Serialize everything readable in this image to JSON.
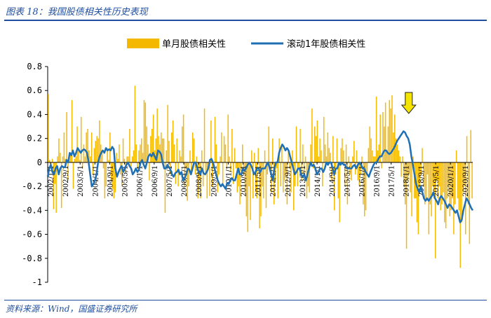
{
  "header": {
    "caption": "图表 18：我国股债相关性历史表现"
  },
  "footer": {
    "source": "资料来源：Wind，国盛证券研究所"
  },
  "colors": {
    "bar": "#f5b800",
    "line": "#1f6fb5",
    "accent": "#1f4e9e",
    "arrow": "#f5e400"
  },
  "chart_data": {
    "type": "bar+line",
    "legend": [
      "单月股债相关性",
      "滚动1年股债相关性"
    ],
    "legend_position": "top",
    "ylim": [
      -1,
      0.8
    ],
    "yticks": [
      "0.8",
      "0.6",
      "0.4",
      "0.2",
      "0",
      "-0.2",
      "-0.4",
      "-0.6",
      "-0.8",
      "-1"
    ],
    "ytick_values": [
      0.8,
      0.6,
      0.4,
      0.2,
      0,
      -0.2,
      -0.4,
      -0.6,
      -0.8,
      -1
    ],
    "xlabels": [
      "2002/1/1",
      "2002/9/1",
      "2003/5/1",
      "2004/1/1",
      "2004/9/1",
      "2005/5/1",
      "2006/1/1",
      "2006/9/1",
      "2007/5/1",
      "2008/1/1",
      "2008/9/1",
      "2009/5/1",
      "2010/1/1",
      "2010/9/1",
      "2011/5/1",
      "2012/1/1",
      "2012/9/1",
      "2013/5/1",
      "2014/1/1",
      "2014/9/1",
      "2015/5/1",
      "2016/1/1",
      "2016/9/1",
      "2017/5/1",
      "2018/1/1",
      "2018/9/1",
      "2019/5/1",
      "2020/1/1",
      "2020/9/1"
    ],
    "annotation": {
      "type": "arrow",
      "position": "2018/1/1"
    },
    "series": [
      {
        "name": "单月股债相关性",
        "type": "bar",
        "values": [
          0.57,
          0.02,
          -0.05,
          0.03,
          -0.39,
          -0.18,
          -0.42,
          0.05,
          0.2,
          0.08,
          -0.38,
          0.05,
          0.25,
          0.03,
          0.42,
          -0.15,
          0.05,
          0.08,
          0.52,
          -0.22,
          0.03,
          0.05,
          0.3,
          0.1,
          0.02,
          0.38,
          -0.05,
          0.15,
          0.05,
          0.25,
          0.28,
          0.1,
          0.05,
          0.25,
          -0.1,
          0.12,
          0.18,
          0.22,
          0.2,
          0.35,
          0.15,
          0.1,
          -0.05,
          -0.3,
          -0.2,
          0.12,
          0.02,
          0.25,
          -0.15,
          -0.22,
          -0.3,
          -0.25,
          0.08,
          0.03,
          0.15,
          -0.1,
          -0.2,
          0.2,
          0.03,
          -0.08,
          0.05,
          0.05,
          0.28,
          -0.05,
          0.05,
          0.1,
          0.64,
          0.15,
          -0.05,
          0.1,
          0.15,
          0.2,
          0.08,
          0.52,
          0.5,
          0.3,
          0.15,
          -0.15,
          0.22,
          0.28,
          0.4,
          0.1,
          0.2,
          0.45,
          0.22,
          0.15,
          0.25,
          0.2,
          0.2,
          -0.42,
          0.1,
          0.48,
          0.18,
          -0.1,
          0.25,
          0.35,
          0.15,
          -0.18,
          0.2,
          -0.2,
          0.1,
          0.05,
          0.3,
          0.4,
          -0.2,
          -0.05,
          -0.32,
          -0.2,
          0.1,
          -0.1,
          0.25,
          0.2,
          -0.1,
          0.05,
          -0.3,
          -0.15,
          -0.3,
          0.1,
          -0.2,
          0.45,
          -0.1,
          -0.3,
          -0.05,
          -0.28,
          0.35,
          -0.2,
          -0.05,
          0.38,
          0.15,
          -0.25,
          -0.1,
          0.05,
          0.25,
          -0.2,
          0.22,
          0.15,
          -0.05,
          0.4,
          0.05,
          -0.08,
          0.28,
          -0.18,
          0.12,
          -0.05,
          -0.25,
          -0.2,
          -0.35,
          -0.05,
          0.15,
          -0.1,
          -0.25,
          -0.45,
          -0.58,
          -0.2,
          -0.48,
          0.1,
          -0.3,
          0.08,
          -0.25,
          -0.3,
          0.12,
          -0.55,
          -0.45,
          -0.2,
          -0.3,
          0.1,
          -0.38,
          -0.1,
          0.3,
          -0.05,
          -0.25,
          0.2,
          -0.35,
          -0.15,
          -0.05,
          -0.3,
          0.2,
          -0.2,
          0.15,
          -0.25,
          -0.15,
          -0.1,
          -0.35,
          0.1,
          -0.05,
          -0.25,
          0.1,
          -0.4,
          -0.2,
          0.3,
          -0.2,
          -0.05,
          0.28,
          -0.15,
          0.15,
          -0.1,
          0.05,
          -0.3,
          -0.2,
          -0.25,
          0.15,
          0.45,
          -0.05,
          0.3,
          0.22,
          0.35,
          0.05,
          0.2,
          0.1,
          -0.2,
          0.38,
          0.15,
          0.05,
          0.25,
          0.12,
          0.08,
          -0.15,
          0.22,
          -0.4,
          -0.1,
          0.2,
          -0.3,
          -0.5,
          0.12,
          0.2,
          0.1,
          -0.2,
          0.15,
          -0.35,
          0.05,
          -0.1,
          -0.15,
          0.05,
          0.18,
          -0.1,
          0.1,
          -0.15,
          -0.2,
          -0.1,
          0.05,
          -0.35,
          -0.45,
          -0.4,
          -0.1,
          0.12,
          0.3,
          0.2,
          0.1,
          0.05,
          0.05,
          0.55,
          0.1,
          0.15,
          0.4,
          -0.05,
          0.42,
          0.3,
          0.5,
          0.1,
          0.3,
          0.52,
          0.45,
          0.56,
          0.25,
          0.4,
          0.2,
          0.15,
          0.1,
          0.05,
          -0.12,
          0.05,
          -0.2,
          -0.35,
          -0.72,
          -0.15,
          -0.1,
          -0.25,
          -0.45,
          0.05,
          -0.3,
          -0.3,
          -0.5,
          -0.6,
          -0.2,
          -0.1,
          0.12,
          -0.2,
          -0.35,
          -0.3,
          -0.1,
          -0.6,
          -0.35,
          -0.45,
          -0.2,
          -0.3,
          -0.8,
          -0.15,
          -0.3,
          -0.2,
          -0.4,
          -0.35,
          -0.25,
          -0.5,
          -0.55,
          -0.3,
          -0.2,
          -0.45,
          -0.4,
          -0.3,
          -0.6,
          -0.35,
          0.1,
          -0.3,
          -0.4,
          -0.88,
          -0.5,
          -0.25,
          -0.2,
          -0.6,
          0.22,
          -0.35,
          -0.68,
          0.27,
          -0.3
        ]
      },
      {
        "name": "滚动1年股债相关性",
        "type": "line",
        "values": [
          -0.12,
          -0.05,
          -0.02,
          -0.08,
          -0.1,
          -0.05,
          -0.03,
          -0.1,
          -0.05,
          -0.03,
          -0.04,
          -0.04,
          0.02,
          0.0,
          0.08,
          0.06,
          0.1,
          0.05,
          0.08,
          0.12,
          0.1,
          0.08,
          0.1,
          0.11,
          0.1,
          0.08,
          0.0,
          -0.1,
          -0.2,
          -0.18,
          -0.15,
          -0.1,
          0.0,
          0.05,
          0.08,
          0.1,
          0.08,
          0.12,
          0.1,
          0.11,
          0.1,
          0.13,
          0.11,
          -0.05,
          -0.12,
          -0.08,
          -0.05,
          -0.03,
          -0.08,
          -0.05,
          -0.02,
          0.0,
          -0.03,
          -0.05,
          -0.1,
          -0.08,
          -0.05,
          -0.08,
          -0.06,
          0.0,
          0.02,
          -0.02,
          -0.05,
          0.0,
          0.05,
          0.07,
          0.05,
          0.08,
          0.05,
          0.02,
          0.1,
          0.09,
          0.07,
          0.0,
          -0.05,
          -0.05,
          -0.02,
          -0.04,
          -0.06,
          -0.1,
          -0.12,
          -0.09,
          -0.08,
          -0.06,
          -0.1,
          -0.08,
          -0.15,
          -0.13,
          -0.1,
          -0.05,
          -0.06,
          -0.1,
          -0.05,
          0.0,
          0.0,
          -0.05,
          -0.08,
          -0.1,
          -0.05,
          -0.09,
          -0.1,
          -0.08,
          -0.05,
          0.02,
          0.03,
          0.0,
          -0.05,
          -0.1,
          -0.15,
          -0.18,
          -0.2,
          -0.18,
          -0.2,
          -0.22,
          -0.17,
          -0.18,
          -0.15,
          -0.13,
          -0.15,
          -0.15,
          -0.1,
          -0.05,
          -0.1,
          -0.1,
          -0.05,
          -0.07,
          -0.05,
          -0.02,
          0.0,
          -0.02,
          -0.05,
          -0.1,
          -0.08,
          -0.05,
          -0.05,
          -0.08,
          -0.05,
          -0.05,
          -0.05,
          -0.02,
          0.0,
          -0.05,
          -0.1,
          -0.15,
          -0.05,
          0.0,
          0.0,
          0.08,
          0.12,
          0.15,
          0.13,
          0.1,
          0.12,
          0.1,
          0.05,
          0.0,
          -0.05,
          -0.1,
          -0.08,
          -0.05,
          -0.05,
          -0.1,
          -0.12,
          -0.1,
          -0.15,
          -0.1,
          -0.05,
          0.0,
          -0.03,
          -0.02,
          -0.05,
          -0.1,
          -0.08,
          -0.05,
          -0.05,
          -0.08,
          -0.05,
          0.0,
          -0.02,
          0.0,
          0.0,
          -0.05,
          -0.1,
          -0.05,
          -0.05,
          0.0,
          -0.02,
          0.0,
          -0.02,
          -0.02,
          -0.05,
          -0.05,
          -0.05,
          -0.05,
          -0.03,
          -0.02,
          -0.05,
          -0.02,
          0.0,
          -0.02,
          -0.05,
          -0.05,
          -0.08,
          -0.1,
          -0.12,
          -0.08,
          -0.05,
          -0.02,
          0.0,
          0.0,
          0.03,
          0.05,
          0.05,
          0.08,
          0.1,
          0.1,
          0.08,
          0.07,
          0.08,
          0.1,
          0.12,
          0.15,
          0.18,
          0.2,
          0.22,
          0.24,
          0.26,
          0.25,
          0.22,
          0.2,
          0.15,
          0.05,
          -0.02,
          -0.1,
          -0.18,
          -0.22,
          -0.25,
          -0.2,
          -0.25,
          -0.3,
          -0.32,
          -0.3,
          -0.32,
          -0.3,
          -0.28,
          -0.25,
          -0.3,
          -0.32,
          -0.35,
          -0.3,
          -0.28,
          -0.3,
          -0.32,
          -0.35,
          -0.38,
          -0.35,
          -0.36,
          -0.38,
          -0.4,
          -0.42,
          -0.4,
          -0.45,
          -0.5,
          -0.48,
          -0.4,
          -0.35,
          -0.3,
          -0.32,
          -0.35,
          -0.38,
          -0.4
        ]
      }
    ]
  }
}
